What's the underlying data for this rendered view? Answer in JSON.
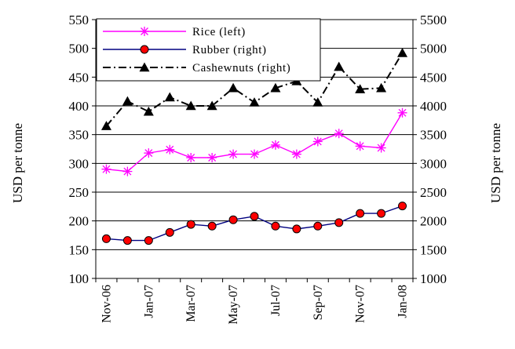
{
  "chart_data": {
    "type": "line",
    "x": [
      "Nov-06",
      "Dec-06",
      "Jan-07",
      "Feb-07",
      "Mar-07",
      "Apr-07",
      "May-07",
      "Jun-07",
      "Jul-07",
      "Aug-07",
      "Sep-07",
      "Oct-07",
      "Nov-07",
      "Dec-07",
      "Jan-08"
    ],
    "x_tick_labels": [
      "Nov-06",
      "Jan-07",
      "Mar-07",
      "May-07",
      "Jul-07",
      "Sep-07",
      "Nov-07",
      "Jan-08"
    ],
    "ylabel_left": "USD per tonne",
    "ylabel_right": "USD per tonne",
    "ylim_left": [
      100,
      550
    ],
    "ylim_right": [
      1000,
      5500
    ],
    "yticks_left": [
      "100",
      "150",
      "200",
      "250",
      "300",
      "350",
      "400",
      "450",
      "500",
      "550"
    ],
    "yticks_right": [
      "1000",
      "1500",
      "2000",
      "2500",
      "3000",
      "3500",
      "4000",
      "4500",
      "5000",
      "5500"
    ],
    "grid": "horizontal",
    "legend_position": "top-left",
    "series": [
      {
        "name": "Rice (left)",
        "axis": "left",
        "color": "#ff00ff",
        "marker": "star",
        "line": "solid",
        "values": [
          290,
          286,
          318,
          324,
          310,
          310,
          316,
          316,
          332,
          316,
          338,
          352,
          330,
          327,
          388
        ]
      },
      {
        "name": "Rubber (right)",
        "axis": "right",
        "color": "#000080",
        "marker": "circle",
        "marker_fill": "#ff0000",
        "line": "solid",
        "values": [
          1690,
          1660,
          1660,
          1800,
          1940,
          1910,
          2020,
          2080,
          1910,
          1860,
          1910,
          1970,
          2130,
          2130,
          2260
        ]
      },
      {
        "name": "Cashewnuts (right)",
        "axis": "right",
        "color": "#000000",
        "marker": "triangle",
        "line": "dash-dot",
        "values": [
          3650,
          4080,
          3900,
          4150,
          4000,
          4000,
          4310,
          4060,
          4310,
          4430,
          4060,
          4680,
          4290,
          4310,
          4920
        ]
      }
    ]
  }
}
